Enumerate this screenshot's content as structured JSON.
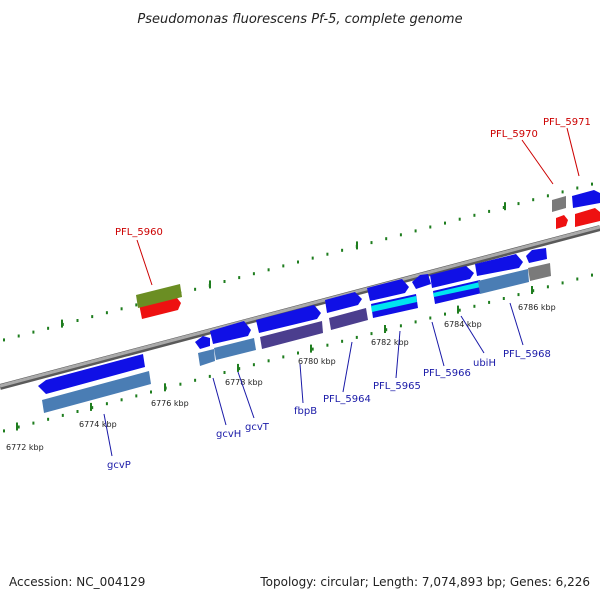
{
  "title": "Pseudomonas fluorescens Pf-5, complete genome",
  "footer": {
    "accession": "Accession: NC_004129",
    "summary": "Topology: circular; Length: 7,074,893 bp; Genes: 6,226"
  },
  "scale_labels": [
    "6772 kbp",
    "6774 kbp",
    "6776 kbp",
    "6778 kbp",
    "6780 kbp",
    "6782 kbp",
    "6784 kbp",
    "6786 kbp"
  ],
  "gene_labels_black_strand": [
    "gcvP",
    "gcvH",
    "gcvT",
    "fbpB",
    "PFL_5964",
    "PFL_5965",
    "PFL_5966",
    "ubiH",
    "PFL_5968"
  ],
  "gene_labels_red_strand": [
    "PFL_5960",
    "PFL_5970",
    "PFL_5971"
  ],
  "colors": {
    "backbone": "#7f7f7f",
    "tick": "#1e7d1e",
    "gene_blue": "#1010e6",
    "gene_steelblue": "#4a7db4",
    "gene_slate": "#4b3e8e",
    "gene_cyan": "#00e5f0",
    "gene_gray": "#7a7a7a",
    "gene_olive": "#6b8e23",
    "gene_red": "#ee1111",
    "label_blue": "#1a1aa8",
    "label_red": "#cc0000"
  }
}
